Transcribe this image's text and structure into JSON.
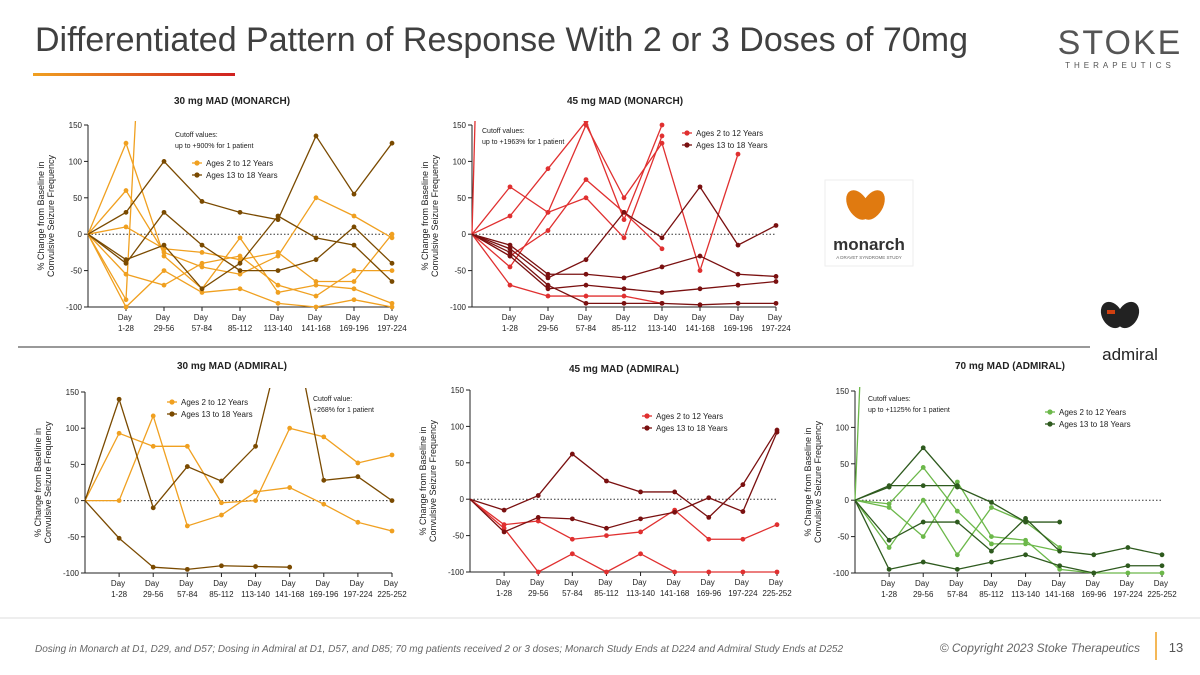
{
  "header": {
    "title": "Differentiated Pattern of Response With 2 or 3 Doses of 70mg",
    "logo": "STOKE",
    "logo_sub": "THERAPEUTICS"
  },
  "logos": {
    "monarch": "monarch",
    "monarch_sub": "A DRAVET SYNDROME STUDY",
    "admiral": "admiral"
  },
  "footer": {
    "note": "Dosing in Monarch at D1, D29, and D57; Dosing in Admiral at D1, D57, and D85; 70 mg patients received 2 or 3 doses; Monarch Study Ends at D224 and Admiral Study Ends at D252",
    "copyright": "© Copyright 2023 Stoke Therapeutics",
    "page": "13"
  },
  "chart_data": [
    {
      "type": "line",
      "title": "30 mg MAD (MONARCH)",
      "y_label": [
        "% Change from Baseline in",
        "Convulsive Seizure Frequency"
      ],
      "annotation": [
        "Cutoff values:",
        "up to +900% for 1 patient"
      ],
      "categories": [
        null,
        "Day 1-28",
        "Day 29-56",
        "Day 57-84",
        "Day 85-112",
        "Day 113-140",
        "Day 141-168",
        "Day 169-196",
        "Day 197-224"
      ],
      "ylim": [
        -100,
        150
      ],
      "yticks": [
        -100,
        -50,
        0,
        50,
        100,
        150
      ],
      "zero_line": 0,
      "series": [
        {
          "name": "Ages 2 to 12 Years",
          "color": "#f0a020",
          "patients": [
            [
              0,
              125,
              -30,
              -75,
              -5,
              -80,
              -70,
              -75,
              -95
            ],
            [
              0,
              60,
              -25,
              -45,
              -55,
              -30,
              50,
              25,
              -5
            ],
            [
              0,
              -100,
              -50,
              -80,
              -75,
              -95,
              -100,
              -90,
              -100
            ],
            [
              0,
              -55,
              -70,
              -40,
              -30,
              -70,
              -85,
              -50,
              -50
            ],
            [
              0,
              10,
              -20,
              -25,
              -35,
              -25,
              -65,
              -65,
              0
            ],
            [
              0,
              -90,
              900,
              null,
              null,
              null,
              null,
              null,
              null
            ]
          ]
        },
        {
          "name": "Ages 13 to 18 Years",
          "color": "#7a4a00",
          "patients": [
            [
              0,
              30,
              100,
              45,
              30,
              20,
              135,
              55,
              125
            ],
            [
              0,
              -40,
              30,
              -15,
              -50,
              -50,
              -35,
              10,
              -40
            ],
            [
              0,
              -35,
              -15,
              -75,
              -40,
              25,
              -5,
              -15,
              -65
            ]
          ]
        }
      ]
    },
    {
      "type": "line",
      "title": "45 mg MAD (MONARCH)",
      "y_label": [
        "% Change from Baseline in",
        "Convulsive Seizure Frequency"
      ],
      "annotation": [
        "Cutoff values:",
        "up to +1963% for 1 patient"
      ],
      "categories": [
        null,
        "Day 1-28",
        "Day 29-56",
        "Day 57-84",
        "Day 85-112",
        "Day 113-140",
        "Day 141-168",
        "Day 169-196",
        "Day 197-224"
      ],
      "ylim": [
        -100,
        150
      ],
      "yticks": [
        -100,
        -50,
        0,
        50,
        100,
        150
      ],
      "zero_line": 0,
      "series": [
        {
          "name": "Ages 2 to 12 Years",
          "color": "#e03030",
          "patients": [
            [
              0,
              65,
              30,
              150,
              50,
              125,
              -50,
              110,
              null
            ],
            [
              0,
              25,
              90,
              155,
              20,
              150,
              null,
              null,
              null
            ],
            [
              0,
              -30,
              5,
              75,
              30,
              -20,
              null,
              null,
              null
            ],
            [
              0,
              -45,
              30,
              50,
              -5,
              135,
              null,
              null,
              null
            ],
            [
              0,
              -70,
              -85,
              -85,
              -85,
              -95,
              null,
              null,
              null
            ],
            [
              0,
              1963,
              null,
              null,
              null,
              null,
              null,
              null,
              null
            ]
          ]
        },
        {
          "name": "Ages 13 to 18 Years",
          "color": "#7a1010",
          "patients": [
            [
              0,
              -15,
              -55,
              -55,
              -60,
              -45,
              -30,
              -55,
              -58
            ],
            [
              0,
              -20,
              -60,
              -35,
              30,
              -5,
              65,
              -15,
              12
            ],
            [
              0,
              -25,
              -70,
              -95,
              -95,
              -95,
              -97,
              -95,
              -95
            ],
            [
              0,
              -30,
              -75,
              -70,
              -75,
              -80,
              -75,
              -70,
              -65
            ]
          ]
        }
      ]
    },
    {
      "type": "line",
      "title": "30 mg MAD (ADMIRAL)",
      "y_label": [
        "% Change from Baseline in",
        "Convulsive Seizure Frequency"
      ],
      "annotation": [
        "Cutoff value:",
        "+268% for 1 patient"
      ],
      "categories": [
        null,
        "Day 1-28",
        "Day 29-56",
        "Day 57-84",
        "Day 85-112",
        "Day 113-140",
        "Day 141-168",
        "Day 169-196",
        "Day 197-224",
        "Day 225-252"
      ],
      "ylim": [
        -100,
        150
      ],
      "yticks": [
        -100,
        -50,
        0,
        50,
        100,
        150
      ],
      "zero_line": 0,
      "series": [
        {
          "name": "Ages 2 to 12 Years",
          "color": "#f0a020",
          "patients": [
            [
              0,
              93,
              75,
              75,
              -3,
              0,
              100,
              88,
              52,
              63
            ],
            [
              0,
              0,
              117,
              -35,
              -20,
              12,
              18,
              -5,
              -30,
              -42
            ]
          ]
        },
        {
          "name": "Ages 13 to 18 Years",
          "color": "#7a4a00",
          "patients": [
            [
              0,
              140,
              -10,
              47,
              27,
              75,
              268,
              28,
              33,
              0
            ],
            [
              0,
              -52,
              -92,
              -95,
              -90,
              -91,
              -92,
              null,
              null,
              null
            ]
          ]
        }
      ]
    },
    {
      "type": "line",
      "title": "45 mg MAD (ADMIRAL)",
      "y_label": [
        "% Change from Baseline in",
        "Convulsive Seizure Frequency"
      ],
      "categories": [
        null,
        "Day 1-28",
        "Day 29-56",
        "Day 57-84",
        "Day 85-112",
        "Day 113-140",
        "Day 141-168",
        "Day 169-96",
        "Day 197-224",
        "Day 225-252"
      ],
      "ylim": [
        -100,
        150
      ],
      "yticks": [
        -100,
        -50,
        0,
        50,
        100,
        150
      ],
      "zero_line": 0,
      "series": [
        {
          "name": "Ages 2 to 12 Years",
          "color": "#e03030",
          "patients": [
            [
              0,
              -35,
              -30,
              -55,
              -50,
              -45,
              -15,
              -55,
              -55,
              -35
            ],
            [
              0,
              -40,
              -100,
              -75,
              -100,
              -75,
              -100,
              -100,
              -100,
              -100
            ]
          ]
        },
        {
          "name": "Ages 13 to 18 Years",
          "color": "#7a1010",
          "patients": [
            [
              0,
              -15,
              5,
              62,
              25,
              10,
              10,
              -25,
              20,
              95
            ],
            [
              0,
              -45,
              -25,
              -27,
              -40,
              -27,
              -18,
              2,
              -17,
              92
            ]
          ]
        }
      ]
    },
    {
      "type": "line",
      "title": "70 mg MAD (ADMIRAL)",
      "y_label": [
        "% Change from Baseline in",
        "Convulsive Seizure Frequency"
      ],
      "annotation": [
        "Cutoff values:",
        "up to +1125% for 1 patient"
      ],
      "categories": [
        null,
        "Day 1-28",
        "Day 29-56",
        "Day 57-84",
        "Day 85-112",
        "Day 113-140",
        "Day 141-168",
        "Day 169-96",
        "Day 197-224",
        "Day 225-252"
      ],
      "ylim": [
        -100,
        150
      ],
      "yticks": [
        -100,
        -50,
        0,
        50,
        100,
        150
      ],
      "zero_line": 0,
      "series": [
        {
          "name": "Ages 2 to 12 Years",
          "color": "#6cb84a",
          "patients": [
            [
              0,
              -5,
              45,
              -15,
              -60,
              -60,
              -70,
              null,
              null,
              null
            ],
            [
              0,
              -65,
              0,
              -75,
              -10,
              -30,
              -65,
              null,
              null,
              null
            ],
            [
              0,
              -10,
              -50,
              25,
              -50,
              -55,
              -95,
              -100,
              -100,
              -100
            ],
            [
              0,
              1125,
              null,
              null,
              null,
              null,
              null,
              null,
              null,
              null
            ]
          ]
        },
        {
          "name": "Ages 13 to 18 Years",
          "color": "#2e5a1e",
          "patients": [
            [
              0,
              18,
              72,
              18,
              -3,
              -30,
              -30,
              null,
              null,
              null
            ],
            [
              0,
              -55,
              -30,
              -30,
              -70,
              -25,
              -70,
              -75,
              -65,
              -75
            ],
            [
              0,
              -95,
              -85,
              -95,
              -85,
              -75,
              -90,
              -100,
              -90,
              -90
            ],
            [
              0,
              20,
              20,
              20,
              null,
              null,
              null,
              null,
              null,
              null
            ]
          ]
        }
      ]
    }
  ]
}
